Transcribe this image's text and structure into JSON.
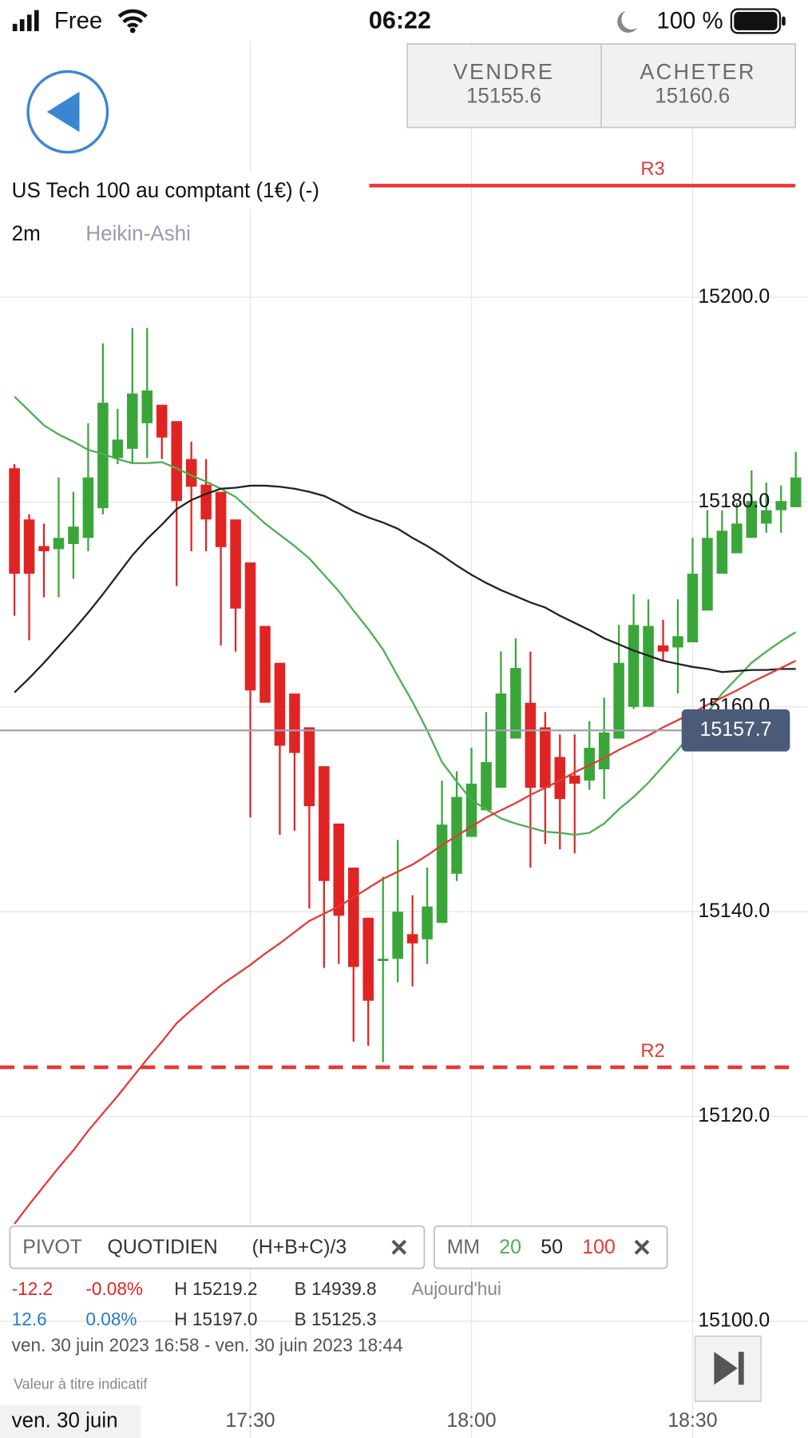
{
  "status_bar": {
    "carrier": "Free",
    "time": "06:22",
    "battery": "100 %"
  },
  "trade": {
    "sell_label": "VENDRE",
    "sell_price": "15155.6",
    "buy_label": "ACHETER",
    "buy_price": "15160.6"
  },
  "chart_data": {
    "type": "candlestick",
    "title": "US Tech 100 au comptant (1€) (-)",
    "interval": "2m",
    "style": "Heikin-Ashi",
    "categories": [
      null,
      null,
      null,
      null,
      null,
      null,
      null,
      null,
      null,
      null,
      null,
      null,
      null,
      null,
      null,
      null,
      "17:30",
      null,
      null,
      null,
      null,
      null,
      null,
      null,
      null,
      null,
      null,
      null,
      null,
      null,
      null,
      "18:00",
      null,
      null,
      null,
      null,
      null,
      null,
      null,
      null,
      null,
      null,
      null,
      null,
      null,
      null,
      "18:30",
      null,
      null,
      null,
      null,
      null,
      null,
      null
    ],
    "open": [
      15183.3,
      15178.3,
      15175.7,
      15175.4,
      15175.9,
      15176.5,
      15179.4,
      15184.3,
      15185.2,
      15187.7,
      15189.5,
      15187.9,
      15184.2,
      15181.7,
      15181.0,
      15178.3,
      15174.1,
      15167.9,
      15164.3,
      15161.3,
      15158.0,
      15154.2,
      15148.6,
      15144.3,
      15139.4,
      15135.3,
      15135.4,
      15137.8,
      15137.3,
      15138.9,
      15143.7,
      15147.3,
      15149.9,
      15152.1,
      15156.9,
      15160.4,
      15158.0,
      15155.1,
      15153.3,
      15152.8,
      15153.9,
      15156.9,
      15160.0,
      15160.0,
      15166.0,
      15165.8,
      15166.3,
      15169.4,
      15173.0,
      15175.0,
      15176.5,
      15177.9,
      15179.2,
      15179.5
    ],
    "high": [
      15183.7,
      15178.8,
      15177.9,
      15182.4,
      15181.0,
      15187.7,
      15195.5,
      15189.1,
      15197.0,
      15197.0,
      15189.5,
      15187.9,
      15185.9,
      15184.2,
      15181.0,
      15178.3,
      15174.1,
      15167.9,
      15164.3,
      15161.3,
      15158.0,
      15154.2,
      15148.6,
      15144.3,
      15139.4,
      15143.4,
      15147.0,
      15141.6,
      15144.3,
      15152.8,
      15153.7,
      15156.0,
      15159.5,
      15165.4,
      15166.7,
      15165.4,
      15159.5,
      15157.3,
      15157.3,
      15158.6,
      15160.9,
      15168.0,
      15171.0,
      15170.5,
      15168.5,
      15170.5,
      15176.5,
      15179.2,
      15179.2,
      15179.9,
      15183.1,
      15181.9,
      15181.6,
      15184.9
    ],
    "low": [
      15168.9,
      15166.5,
      15170.7,
      15170.7,
      15172.5,
      15175.2,
      15178.8,
      15183.7,
      15183.7,
      15184.3,
      15184.2,
      15171.8,
      15175.2,
      15175.2,
      15166.0,
      15165.4,
      15149.2,
      15160.4,
      15147.5,
      15147.9,
      15140.3,
      15134.5,
      15134.9,
      15127.3,
      15126.9,
      15125.3,
      15133.1,
      15132.7,
      15134.9,
      15138.9,
      15143.0,
      15147.3,
      15149.9,
      15152.1,
      15156.9,
      15144.3,
      15146.6,
      15146.1,
      15145.7,
      15151.9,
      15151.0,
      15156.9,
      15159.8,
      15160.0,
      15164.5,
      15161.3,
      15166.3,
      15169.4,
      15173.0,
      15175.0,
      15176.5,
      15177.0,
      15177.0,
      15179.5
    ],
    "close": [
      15173.0,
      15173.0,
      15175.2,
      15176.5,
      15177.6,
      15182.4,
      15189.7,
      15186.1,
      15190.6,
      15190.9,
      15186.3,
      15180.1,
      15181.5,
      15178.3,
      15175.6,
      15169.6,
      15161.6,
      15160.4,
      15156.2,
      15155.5,
      15150.3,
      15143.0,
      15139.6,
      15134.6,
      15131.3,
      15135.4,
      15140.0,
      15136.9,
      15140.5,
      15148.5,
      15151.2,
      15152.5,
      15154.6,
      15161.3,
      15163.8,
      15152.1,
      15152.1,
      15151.0,
      15152.5,
      15156.0,
      15157.5,
      15164.3,
      15168.0,
      15167.9,
      15165.4,
      15166.9,
      15173.0,
      15176.5,
      15177.2,
      15177.9,
      15180.1,
      15179.2,
      15180.1,
      15182.4
    ],
    "up_color": "#3aa63a",
    "down_color": "#e02424",
    "series": [
      {
        "name": "20",
        "color": "#4caf50",
        "values": [
          15190.3,
          15188.9,
          15187.5,
          15186.6,
          15185.9,
          15185.1,
          15184.7,
          15184.2,
          15183.8,
          15183.8,
          15183.9,
          15183.3,
          15182.6,
          15182.0,
          15181.3,
          15180.5,
          15179.2,
          15177.9,
          15176.8,
          15175.7,
          15174.5,
          15172.9,
          15171.3,
          15169.4,
          15167.6,
          15165.6,
          15163.0,
          15160.5,
          15157.7,
          15154.6,
          15152.7,
          15150.9,
          15150.0,
          15149.1,
          15148.6,
          15148.2,
          15147.8,
          15147.7,
          15147.5,
          15147.7,
          15148.6,
          15150.0,
          15151.2,
          15152.6,
          15154.2,
          15155.8,
          15157.6,
          15159.4,
          15161.3,
          15162.8,
          15164.3,
          15165.4,
          15166.4,
          15167.3
        ]
      },
      {
        "name": "50",
        "color": "#222222",
        "values": [
          15161.4,
          15162.8,
          15164.3,
          15165.9,
          15167.5,
          15169.2,
          15171.0,
          15172.9,
          15174.8,
          15176.4,
          15177.8,
          15179.3,
          15180.2,
          15180.8,
          15181.3,
          15181.4,
          15181.6,
          15181.6,
          15181.5,
          15181.3,
          15181.0,
          15180.6,
          15179.9,
          15179.1,
          15178.5,
          15178.0,
          15177.4,
          15176.5,
          15175.7,
          15174.8,
          15173.8,
          15172.9,
          15172.1,
          15171.4,
          15170.8,
          15170.2,
          15169.7,
          15168.9,
          15168.2,
          15167.5,
          15166.7,
          15166.1,
          15165.5,
          15165.0,
          15164.5,
          15164.2,
          15163.9,
          15163.7,
          15163.4,
          15163.5,
          15163.6,
          15163.6,
          15163.7,
          15163.7
        ]
      },
      {
        "name": "100",
        "color": "#e53935",
        "values": [
          15109.5,
          15111.4,
          15113.2,
          15115.0,
          15116.7,
          15118.6,
          15120.3,
          15122.0,
          15123.8,
          15125.6,
          15127.3,
          15129.1,
          15130.4,
          15131.6,
          15132.8,
          15133.8,
          15134.8,
          15135.9,
          15136.9,
          15138.0,
          15139.1,
          15139.8,
          15140.5,
          15141.4,
          15142.3,
          15143.2,
          15143.9,
          15144.6,
          15145.5,
          15146.5,
          15147.4,
          15148.3,
          15149.2,
          15149.9,
          15150.6,
          15151.4,
          15152.1,
          15152.8,
          15153.6,
          15154.3,
          15155.0,
          15155.8,
          15156.5,
          15157.2,
          15158.0,
          15158.7,
          15159.4,
          15160.2,
          15160.9,
          15161.6,
          15162.4,
          15163.1,
          15163.8,
          15164.5
        ]
      }
    ],
    "levels": [
      {
        "name": "R3",
        "value": 15210.9,
        "color": "#e53935",
        "dashed": false
      },
      {
        "name": "R2",
        "value": 15124.8,
        "color": "#e53935",
        "dashed": true
      }
    ],
    "last_price": 15157.7,
    "ylim": [
      15092,
      15225
    ],
    "yticks": [
      {
        "value": 15100,
        "label": "15100.0"
      },
      {
        "value": 15120,
        "label": "15120.0"
      },
      {
        "value": 15140,
        "label": "15140.0"
      },
      {
        "value": 15160,
        "label": "15160.0"
      },
      {
        "value": 15180,
        "label": "15180.0"
      },
      {
        "value": 15200,
        "label": "15200.0"
      }
    ],
    "grid": true,
    "date_label": "ven. 30 juin"
  },
  "indicators": {
    "pivot": [
      "PIVOT",
      "QUOTIDIEN",
      "(H+B+C)/3"
    ],
    "ma_label": "MM"
  },
  "stats": {
    "rows": [
      [
        "-12.2",
        "-0.08%",
        "H 15219.2",
        "B 14939.8",
        "Aujourd'hui"
      ],
      [
        "12.6",
        "0.08%",
        "H 15197.0",
        "B 15125.3"
      ]
    ],
    "range": "ven. 30 juin 2023 16:58 - ven. 30 juin 2023 18:44",
    "disclaimer": "Valeur à titre indicatif"
  }
}
